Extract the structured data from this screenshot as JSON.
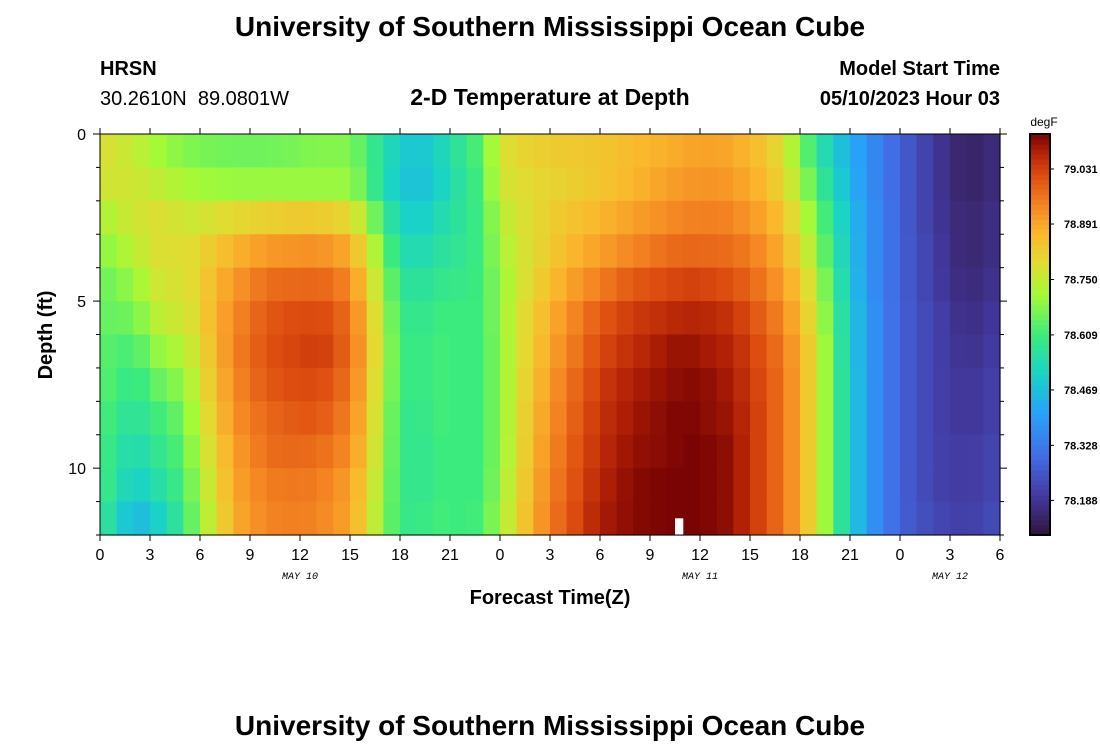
{
  "page": {
    "title": "University of Southern Mississippi Ocean Cube",
    "title_repeat": "University of Southern Mississippi Ocean Cube",
    "station": "HRSN",
    "coords": "30.2610N  89.0801W",
    "plot_title": "2-D Temperature at Depth",
    "model_start_label": "Model Start Time",
    "model_start_value": "05/10/2023 Hour 03"
  },
  "chart_data": {
    "type": "heatmap",
    "title": "2-D Temperature at Depth",
    "xlabel": "Forecast Time(Z)",
    "ylabel": "Depth (ft)",
    "units": "degF",
    "x_ticks": [
      "0",
      "3",
      "6",
      "9",
      "12",
      "15",
      "18",
      "21",
      "0",
      "3",
      "6",
      "9",
      "12",
      "15",
      "18",
      "21",
      "0",
      "3",
      "6"
    ],
    "x_range_hours": [
      0,
      54
    ],
    "date_labels": [
      {
        "label": "MAY 10",
        "hour": 12
      },
      {
        "label": "MAY 11",
        "hour": 36
      },
      {
        "label": "MAY 12",
        "hour": 51
      }
    ],
    "y_ticks": [
      "0",
      "5",
      "10"
    ],
    "y_range": [
      0,
      12
    ],
    "y_reversed": true,
    "depths": [
      0.5,
      1.5,
      2.5,
      3.5,
      4.5,
      5.5,
      6.5,
      7.5,
      8.5,
      9.5,
      10.5,
      11.5
    ],
    "colorbar": {
      "min": 78.1,
      "max": 79.12,
      "tick_values": [
        "79.031",
        "78.891",
        "78.750",
        "78.609",
        "78.469",
        "78.328",
        "78.188"
      ]
    },
    "time_keyframes_hours": [
      0,
      2,
      4,
      5,
      6,
      8,
      10,
      12,
      13,
      14,
      15,
      16,
      17,
      18,
      19,
      20,
      21,
      22,
      23,
      24,
      26,
      28,
      30,
      32,
      34,
      35,
      36,
      38,
      39,
      40,
      41,
      42,
      43,
      44,
      45,
      46,
      48,
      50,
      52,
      54
    ],
    "values_degF": [
      [
        78.79,
        78.77,
        78.72,
        78.68,
        78.65,
        78.65,
        78.64,
        78.64,
        78.63,
        78.62,
        78.62,
        78.6
      ],
      [
        78.75,
        78.77,
        78.77,
        78.74,
        78.7,
        78.66,
        78.62,
        78.59,
        78.56,
        78.53,
        78.5,
        78.45
      ],
      [
        78.7,
        78.74,
        78.79,
        78.8,
        78.79,
        78.77,
        78.72,
        78.67,
        78.63,
        78.6,
        78.57,
        78.53
      ],
      [
        78.68,
        78.72,
        78.76,
        78.78,
        78.77,
        78.75,
        78.72,
        78.69,
        78.66,
        78.64,
        78.62,
        78.6
      ],
      [
        78.67,
        78.71,
        78.77,
        78.81,
        78.82,
        78.82,
        78.8,
        78.78,
        78.76,
        78.74,
        78.72,
        78.7
      ],
      [
        78.66,
        78.7,
        78.8,
        78.87,
        78.91,
        78.93,
        78.94,
        78.93,
        78.92,
        78.9,
        78.89,
        78.88
      ],
      [
        78.66,
        78.7,
        78.82,
        78.91,
        78.97,
        79.0,
        79.01,
        79.0,
        78.98,
        78.97,
        78.95,
        78.94
      ],
      [
        78.67,
        78.7,
        78.83,
        78.92,
        78.98,
        79.02,
        79.03,
        79.02,
        79.0,
        78.98,
        78.96,
        78.95
      ],
      [
        78.68,
        78.7,
        78.83,
        78.92,
        78.98,
        79.02,
        79.04,
        79.02,
        79.0,
        78.97,
        78.95,
        78.94
      ],
      [
        78.68,
        78.7,
        78.82,
        78.91,
        78.97,
        79.01,
        79.02,
        79.0,
        78.98,
        78.96,
        78.93,
        78.92
      ],
      [
        78.68,
        78.7,
        78.8,
        78.88,
        78.93,
        78.96,
        78.97,
        78.96,
        78.94,
        78.92,
        78.9,
        78.89
      ],
      [
        78.62,
        78.64,
        78.72,
        78.79,
        78.83,
        78.86,
        78.87,
        78.86,
        78.85,
        78.84,
        78.82,
        78.81
      ],
      [
        78.55,
        78.54,
        78.6,
        78.66,
        78.7,
        78.72,
        78.73,
        78.72,
        78.71,
        78.7,
        78.69,
        78.68
      ],
      [
        78.5,
        78.49,
        78.52,
        78.55,
        78.58,
        78.6,
        78.61,
        78.61,
        78.6,
        78.6,
        78.6,
        78.6
      ],
      [
        78.48,
        78.47,
        78.5,
        78.53,
        78.56,
        78.58,
        78.59,
        78.59,
        78.58,
        78.58,
        78.58,
        78.59
      ],
      [
        78.5,
        78.49,
        78.52,
        78.55,
        78.58,
        78.6,
        78.61,
        78.61,
        78.61,
        78.6,
        78.6,
        78.61
      ],
      [
        78.55,
        78.54,
        78.56,
        78.58,
        78.6,
        78.62,
        78.62,
        78.62,
        78.62,
        78.62,
        78.62,
        78.62
      ],
      [
        78.6,
        78.58,
        78.58,
        78.58,
        78.59,
        78.6,
        78.6,
        78.6,
        78.6,
        78.6,
        78.6,
        78.6
      ],
      [
        78.64,
        78.63,
        78.62,
        78.62,
        78.62,
        78.62,
        78.62,
        78.62,
        78.62,
        78.62,
        78.62,
        78.63
      ],
      [
        78.78,
        78.77,
        78.74,
        78.72,
        78.7,
        78.7,
        78.69,
        78.69,
        78.69,
        78.69,
        78.7,
        78.71
      ],
      [
        78.82,
        78.8,
        78.8,
        78.8,
        78.81,
        78.83,
        78.84,
        78.85,
        78.86,
        78.87,
        78.88,
        78.89
      ],
      [
        78.83,
        78.82,
        78.84,
        78.86,
        78.89,
        78.92,
        78.94,
        78.96,
        78.97,
        78.98,
        78.99,
        79.0
      ],
      [
        78.84,
        78.84,
        78.87,
        78.9,
        78.95,
        79.0,
        79.02,
        79.04,
        79.05,
        79.06,
        79.07,
        79.08
      ],
      [
        78.86,
        78.87,
        78.9,
        78.94,
        79.0,
        79.04,
        79.06,
        79.08,
        79.09,
        79.1,
        79.11,
        79.11
      ],
      [
        78.88,
        78.9,
        78.93,
        78.97,
        79.02,
        79.06,
        79.09,
        79.1,
        79.11,
        79.11,
        79.12,
        79.12
      ],
      [
        78.89,
        78.91,
        78.94,
        78.98,
        79.03,
        79.07,
        79.1,
        79.11,
        79.12,
        79.12,
        79.12,
        79.12
      ],
      [
        78.9,
        78.92,
        78.95,
        78.98,
        79.03,
        79.07,
        79.09,
        79.11,
        79.11,
        79.12,
        79.12,
        79.12
      ],
      [
        78.89,
        78.91,
        78.94,
        78.97,
        79.01,
        79.05,
        79.07,
        79.08,
        79.09,
        79.1,
        79.1,
        79.1
      ],
      [
        78.86,
        78.88,
        78.91,
        78.95,
        78.98,
        79.01,
        79.03,
        79.04,
        79.05,
        79.05,
        79.05,
        79.05
      ],
      [
        78.84,
        78.86,
        78.89,
        78.92,
        78.95,
        78.98,
        79.0,
        79.01,
        79.01,
        79.01,
        79.01,
        79.01
      ],
      [
        78.78,
        78.8,
        78.84,
        78.87,
        78.9,
        78.93,
        78.95,
        78.96,
        78.96,
        78.96,
        78.96,
        78.96
      ],
      [
        78.68,
        78.72,
        78.76,
        78.8,
        78.84,
        78.86,
        78.88,
        78.88,
        78.88,
        78.88,
        78.88,
        78.88
      ],
      [
        78.58,
        78.62,
        78.67,
        78.7,
        78.74,
        78.76,
        78.78,
        78.78,
        78.78,
        78.78,
        78.78,
        78.78
      ],
      [
        78.5,
        78.53,
        78.56,
        78.58,
        78.6,
        78.62,
        78.63,
        78.63,
        78.63,
        78.63,
        78.63,
        78.63
      ],
      [
        78.44,
        78.45,
        78.47,
        78.48,
        78.49,
        78.5,
        78.5,
        78.51,
        78.51,
        78.51,
        78.51,
        78.51
      ],
      [
        78.38,
        78.38,
        78.39,
        78.39,
        78.39,
        78.4,
        78.4,
        78.4,
        78.4,
        78.4,
        78.4,
        78.4
      ],
      [
        78.28,
        78.28,
        78.28,
        78.28,
        78.28,
        78.28,
        78.28,
        78.28,
        78.28,
        78.28,
        78.28,
        78.28
      ],
      [
        78.2,
        78.2,
        78.2,
        78.21,
        78.21,
        78.22,
        78.22,
        78.22,
        78.22,
        78.22,
        78.22,
        78.23
      ],
      [
        78.14,
        78.14,
        78.15,
        78.15,
        78.16,
        78.17,
        78.18,
        78.19,
        78.19,
        78.2,
        78.2,
        78.21
      ],
      [
        78.17,
        78.17,
        78.18,
        78.18,
        78.19,
        78.2,
        78.21,
        78.22,
        78.22,
        78.23,
        78.23,
        78.24
      ]
    ],
    "marker": {
      "hour": 34.5,
      "depth_from": 11.5,
      "depth_to": 12.0,
      "color": "#ffffff"
    }
  }
}
